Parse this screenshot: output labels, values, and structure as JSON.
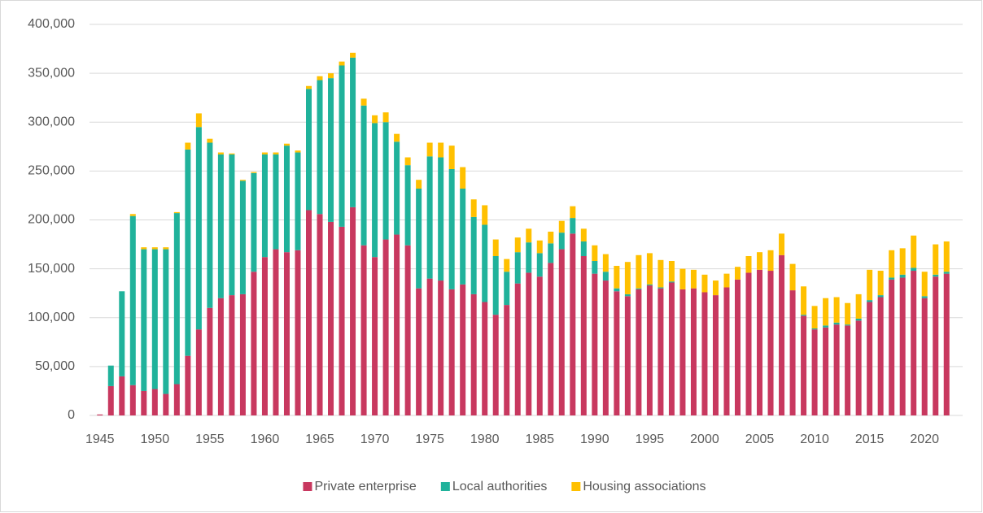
{
  "chart_data": {
    "type": "stacked_bar",
    "x": [
      1945,
      1946,
      1947,
      1948,
      1949,
      1950,
      1951,
      1952,
      1953,
      1954,
      1955,
      1956,
      1957,
      1958,
      1959,
      1960,
      1961,
      1962,
      1963,
      1964,
      1965,
      1966,
      1967,
      1968,
      1969,
      1970,
      1971,
      1972,
      1973,
      1974,
      1975,
      1976,
      1977,
      1978,
      1979,
      1980,
      1981,
      1982,
      1983,
      1984,
      1985,
      1986,
      1987,
      1988,
      1989,
      1990,
      1991,
      1992,
      1993,
      1994,
      1995,
      1996,
      1997,
      1998,
      1999,
      2000,
      2001,
      2002,
      2003,
      2004,
      2005,
      2006,
      2007,
      2008,
      2009,
      2010,
      2011,
      2012,
      2013,
      2014,
      2015,
      2016,
      2017,
      2018,
      2019,
      2020,
      2021,
      2022
    ],
    "xlim": [
      1944.5,
      2022.5
    ],
    "xticks": [
      1945,
      1950,
      1955,
      1960,
      1965,
      1970,
      1975,
      1980,
      1985,
      1990,
      1995,
      2000,
      2005,
      2010,
      2015,
      2020
    ],
    "ylim": [
      0,
      400000
    ],
    "yticks": [
      0,
      {
        "value": 50000,
        "label": "50,000"
      },
      {
        "value": 100000,
        "label": "100,000"
      },
      {
        "value": 150000,
        "label": "150,000"
      },
      {
        "value": 200000,
        "label": "200,000"
      },
      {
        "value": 250000,
        "label": "250,000"
      },
      {
        "value": 300000,
        "label": "300,000"
      },
      {
        "value": 350000,
        "label": "350,000"
      },
      {
        "value": 400000,
        "label": "400,000"
      }
    ],
    "grid": true,
    "legend": "bottom",
    "series": [
      {
        "name": "Private enterprise",
        "color": "#c8385f",
        "values": [
          1000,
          30000,
          40000,
          31000,
          25000,
          27000,
          22000,
          32000,
          61000,
          88000,
          110000,
          120000,
          123000,
          124000,
          147000,
          162000,
          170000,
          167000,
          169000,
          210000,
          206000,
          198000,
          193000,
          213000,
          174000,
          162000,
          180000,
          185000,
          174000,
          130000,
          140000,
          138000,
          129000,
          134000,
          124000,
          116000,
          103000,
          113000,
          135000,
          146000,
          142000,
          156000,
          170000,
          186000,
          163000,
          145000,
          138000,
          127000,
          122000,
          129000,
          133000,
          130000,
          136000,
          129000,
          130000,
          126000,
          123000,
          131000,
          139000,
          146000,
          149000,
          148000,
          164000,
          128000,
          102000,
          88000,
          90000,
          93000,
          92000,
          97000,
          116000,
          121000,
          139000,
          141000,
          148000,
          120000,
          142000,
          145000
        ]
      },
      {
        "name": "Local authorities",
        "color": "#20b29b",
        "values": [
          0,
          21000,
          87000,
          173000,
          145000,
          143000,
          148000,
          175000,
          211000,
          207000,
          169000,
          147000,
          144000,
          116000,
          101000,
          105000,
          97000,
          109000,
          100000,
          124000,
          137000,
          147000,
          165000,
          153000,
          143000,
          137000,
          120000,
          95000,
          82000,
          102000,
          125000,
          126000,
          123000,
          98000,
          79000,
          79000,
          60000,
          34000,
          32000,
          31000,
          24000,
          20000,
          17000,
          16000,
          15000,
          13000,
          9000,
          3000,
          2000,
          1000,
          1000,
          1000,
          1000,
          0,
          0,
          0,
          0,
          0,
          0,
          0,
          0,
          0,
          0,
          0,
          1000,
          1000,
          2000,
          2000,
          1000,
          2000,
          2000,
          2000,
          2000,
          3000,
          3000,
          2000,
          2000,
          2000
        ]
      },
      {
        "name": "Housing associations",
        "color": "#ffc000",
        "values": [
          0,
          0,
          0,
          2000,
          2000,
          2000,
          2000,
          1000,
          7000,
          14000,
          4000,
          2000,
          1000,
          1000,
          1000,
          2000,
          2000,
          2000,
          2000,
          3000,
          4000,
          5000,
          4000,
          5000,
          7000,
          8000,
          10000,
          8000,
          8000,
          9000,
          14000,
          15000,
          24000,
          22000,
          18000,
          20000,
          17000,
          13000,
          15000,
          14000,
          13000,
          12000,
          12000,
          12000,
          13000,
          16000,
          18000,
          23000,
          33000,
          34000,
          32000,
          28000,
          21000,
          21000,
          19000,
          18000,
          15000,
          14000,
          13000,
          17000,
          18000,
          21000,
          22000,
          27000,
          29000,
          23000,
          28000,
          26000,
          22000,
          25000,
          31000,
          25000,
          28000,
          27000,
          33000,
          25000,
          31000,
          31000
        ]
      }
    ]
  }
}
